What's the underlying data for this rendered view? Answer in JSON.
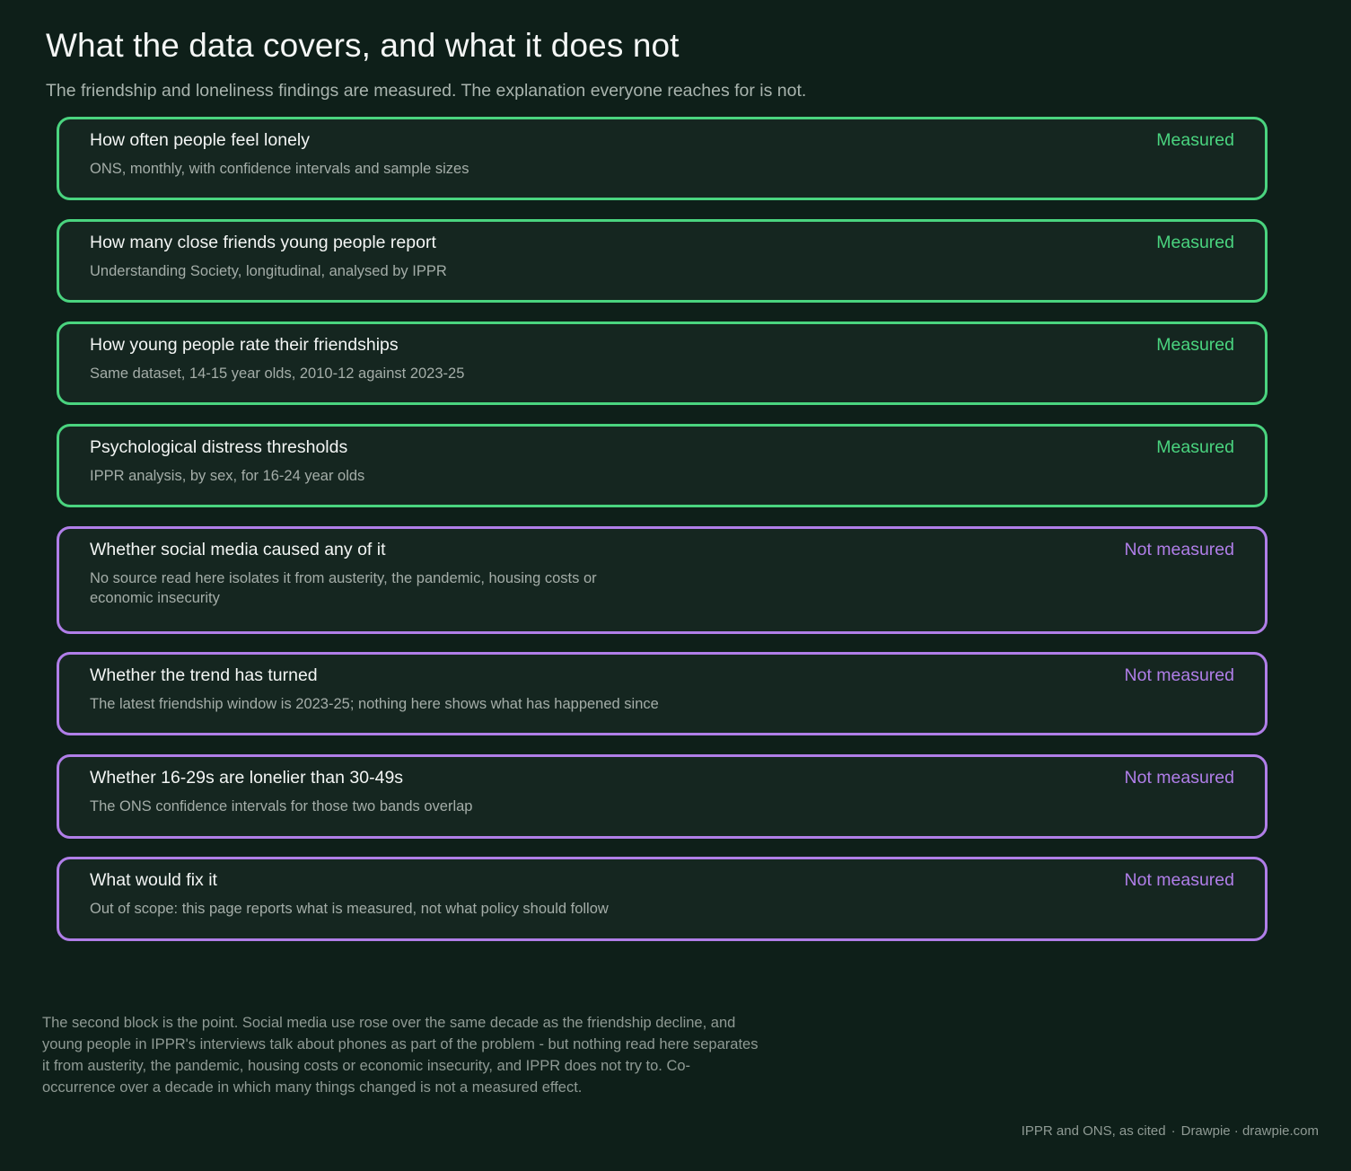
{
  "header": {
    "title": "What the data covers, and what it does not",
    "subtitle": "The friendship and loneliness findings are measured. The explanation everyone reaches for is not."
  },
  "items": [
    {
      "title": "How often people feel lonely",
      "description": "ONS, monthly, with confidence intervals and sample sizes",
      "status": "Measured"
    },
    {
      "title": "How many close friends young people report",
      "description": "Understanding Society, longitudinal, analysed by IPPR",
      "status": "Measured"
    },
    {
      "title": "How young people rate their friendships",
      "description": "Same dataset, 14-15 year olds, 2010-12 against 2023-25",
      "status": "Measured"
    },
    {
      "title": "Psychological distress thresholds",
      "description": "IPPR analysis, by sex, for 16-24 year olds",
      "status": "Measured"
    },
    {
      "title": "Whether social media caused any of it",
      "description": "No source read here isolates it from austerity, the pandemic, housing costs or economic insecurity",
      "status": "Not measured"
    },
    {
      "title": "Whether the trend has turned",
      "description": "The latest friendship window is 2023-25; nothing here shows what has happened since",
      "status": "Not measured"
    },
    {
      "title": "Whether 16-29s are lonelier than 30-49s",
      "description": "The ONS confidence intervals for those two bands overlap",
      "status": "Not measured"
    },
    {
      "title": "What would fix it",
      "description": "Out of scope: this page reports what is measured, not what policy should follow",
      "status": "Not measured"
    }
  ],
  "footnote": "The second block is the point. Social media use rose over the same decade as the friendship decline, and young people in IPPR's interviews talk about phones as part of the problem - but nothing read here separates it from austerity, the pandemic, housing costs or economic insecurity, and IPPR does not try to. Co-occurrence over a decade in which many things changed is not a measured effect.",
  "credit": {
    "source": "IPPR and ONS, as cited",
    "separator": "·",
    "brand": "Drawpie · drawpie.com"
  },
  "colors": {
    "background": "#0e1f19",
    "measured": "#4ad47f",
    "not_measured": "#b07ee8"
  }
}
